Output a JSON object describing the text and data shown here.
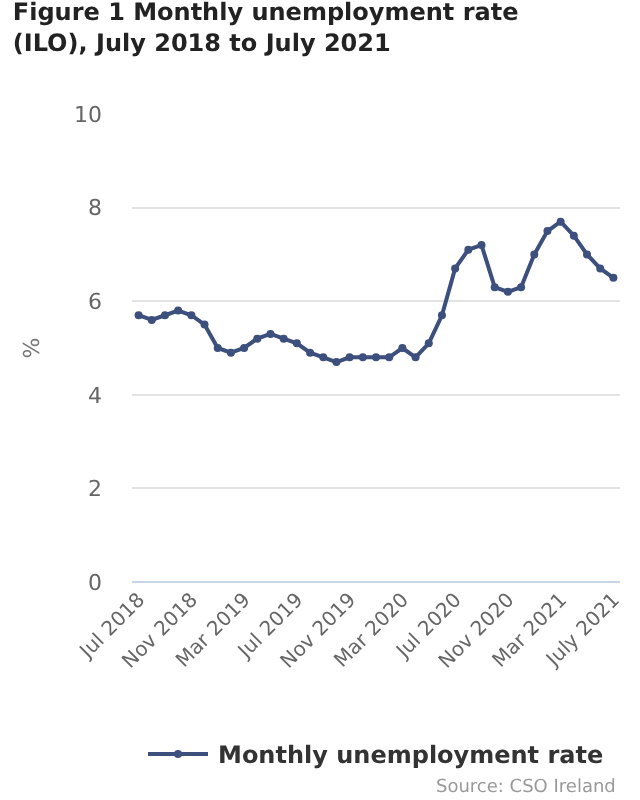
{
  "chart_data": {
    "type": "line",
    "title": "Figure 1 Monthly unemployment rate (ILO), July 2018 to July 2021",
    "ylabel": "%",
    "categories": [
      "Jul 2018",
      null,
      null,
      null,
      "Nov 2018",
      null,
      null,
      null,
      "Mar 2019",
      null,
      null,
      null,
      "Jul 2019",
      null,
      null,
      null,
      "Nov 2019",
      null,
      null,
      null,
      "Mar 2020",
      null,
      null,
      null,
      "Jul 2020",
      null,
      null,
      null,
      "Nov 2020",
      null,
      null,
      null,
      "Mar 2021",
      null,
      null,
      null,
      "July 2021"
    ],
    "series": [
      {
        "name": "Monthly unemployment rate",
        "color": "#3c4f7d",
        "values": [
          5.7,
          5.6,
          5.7,
          5.8,
          5.7,
          5.5,
          5.0,
          4.9,
          5.0,
          5.2,
          5.3,
          5.2,
          5.1,
          4.9,
          4.8,
          4.7,
          4.8,
          4.8,
          4.8,
          4.8,
          5.0,
          4.8,
          5.1,
          5.7,
          6.7,
          7.1,
          7.2,
          6.3,
          6.2,
          6.3,
          7.0,
          7.5,
          7.7,
          7.4,
          7.0,
          6.7,
          6.5
        ]
      }
    ],
    "ylim": [
      0,
      10
    ],
    "yticks": [
      0,
      2,
      4,
      6,
      8,
      10
    ],
    "grid": "y",
    "legend": "bottom",
    "marker": "circle",
    "line_style": "solid",
    "annotations": [
      "Source: CSO Ireland"
    ]
  }
}
